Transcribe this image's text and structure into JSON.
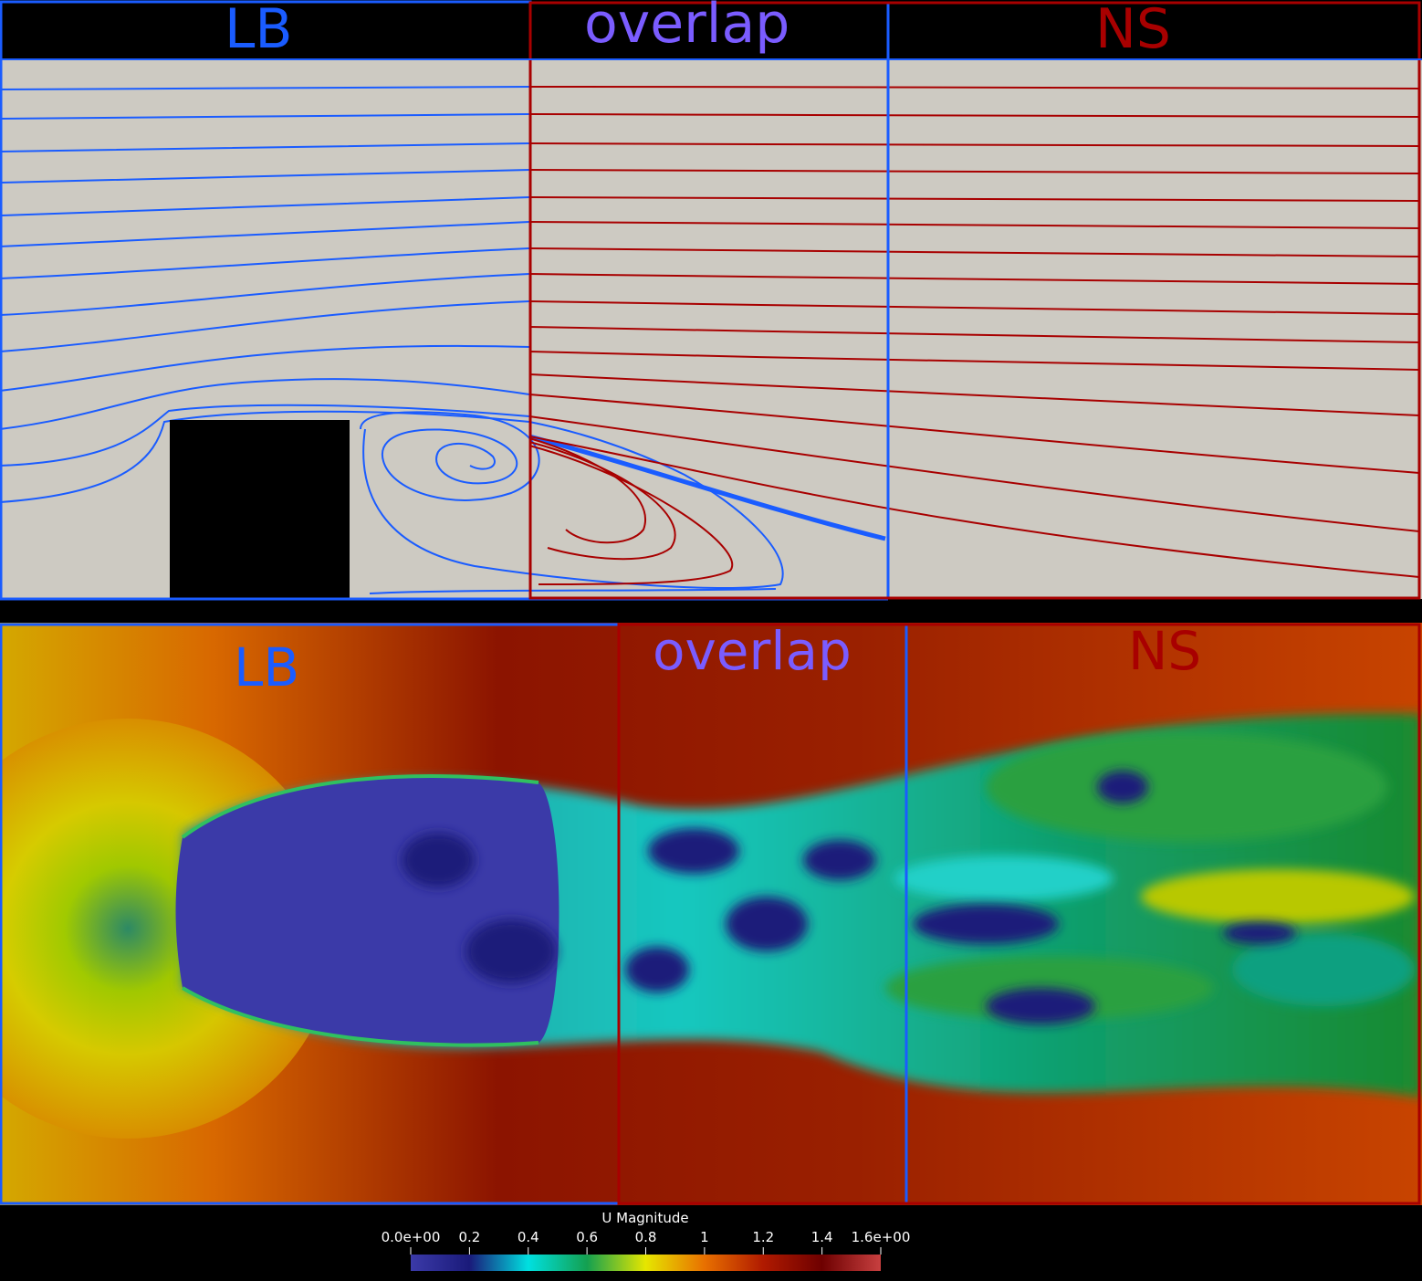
{
  "top_panel": {
    "labels": {
      "lb": "LB",
      "overlap": "overlap",
      "ns": "NS"
    }
  },
  "bottom_panel": {
    "labels": {
      "lb": "LB",
      "overlap": "overlap",
      "ns": "NS"
    }
  },
  "colorbar": {
    "title": "U Magnitude",
    "ticks": [
      "0.0e+00",
      "0.2",
      "0.4",
      "0.6",
      "0.8",
      "1",
      "1.2",
      "1.4",
      "1.6e+00"
    ],
    "colors": [
      "#3b3aa8",
      "#1a1a7a",
      "#00e0e0",
      "#14a050",
      "#e6e600",
      "#e87000",
      "#b01a00",
      "#6e0000",
      "#c84040"
    ]
  },
  "colors": {
    "lb": "#1a5cff",
    "overlap": "#7a5cff",
    "ns": "#a80000",
    "background": "#cdcac2"
  }
}
